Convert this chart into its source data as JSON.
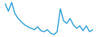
{
  "values": [
    12.5,
    11.0,
    12.8,
    10.5,
    9.5,
    8.8,
    8.2,
    7.8,
    7.5,
    7.2,
    7.8,
    7.0,
    6.8,
    7.2,
    6.5,
    6.2,
    6.8,
    11.5,
    9.0,
    8.5,
    9.5,
    8.2,
    7.5,
    8.0,
    7.0,
    8.0,
    6.8,
    7.2
  ],
  "line_color": "#2b9fd4",
  "linewidth": 1.0,
  "background_color": "#ffffff"
}
